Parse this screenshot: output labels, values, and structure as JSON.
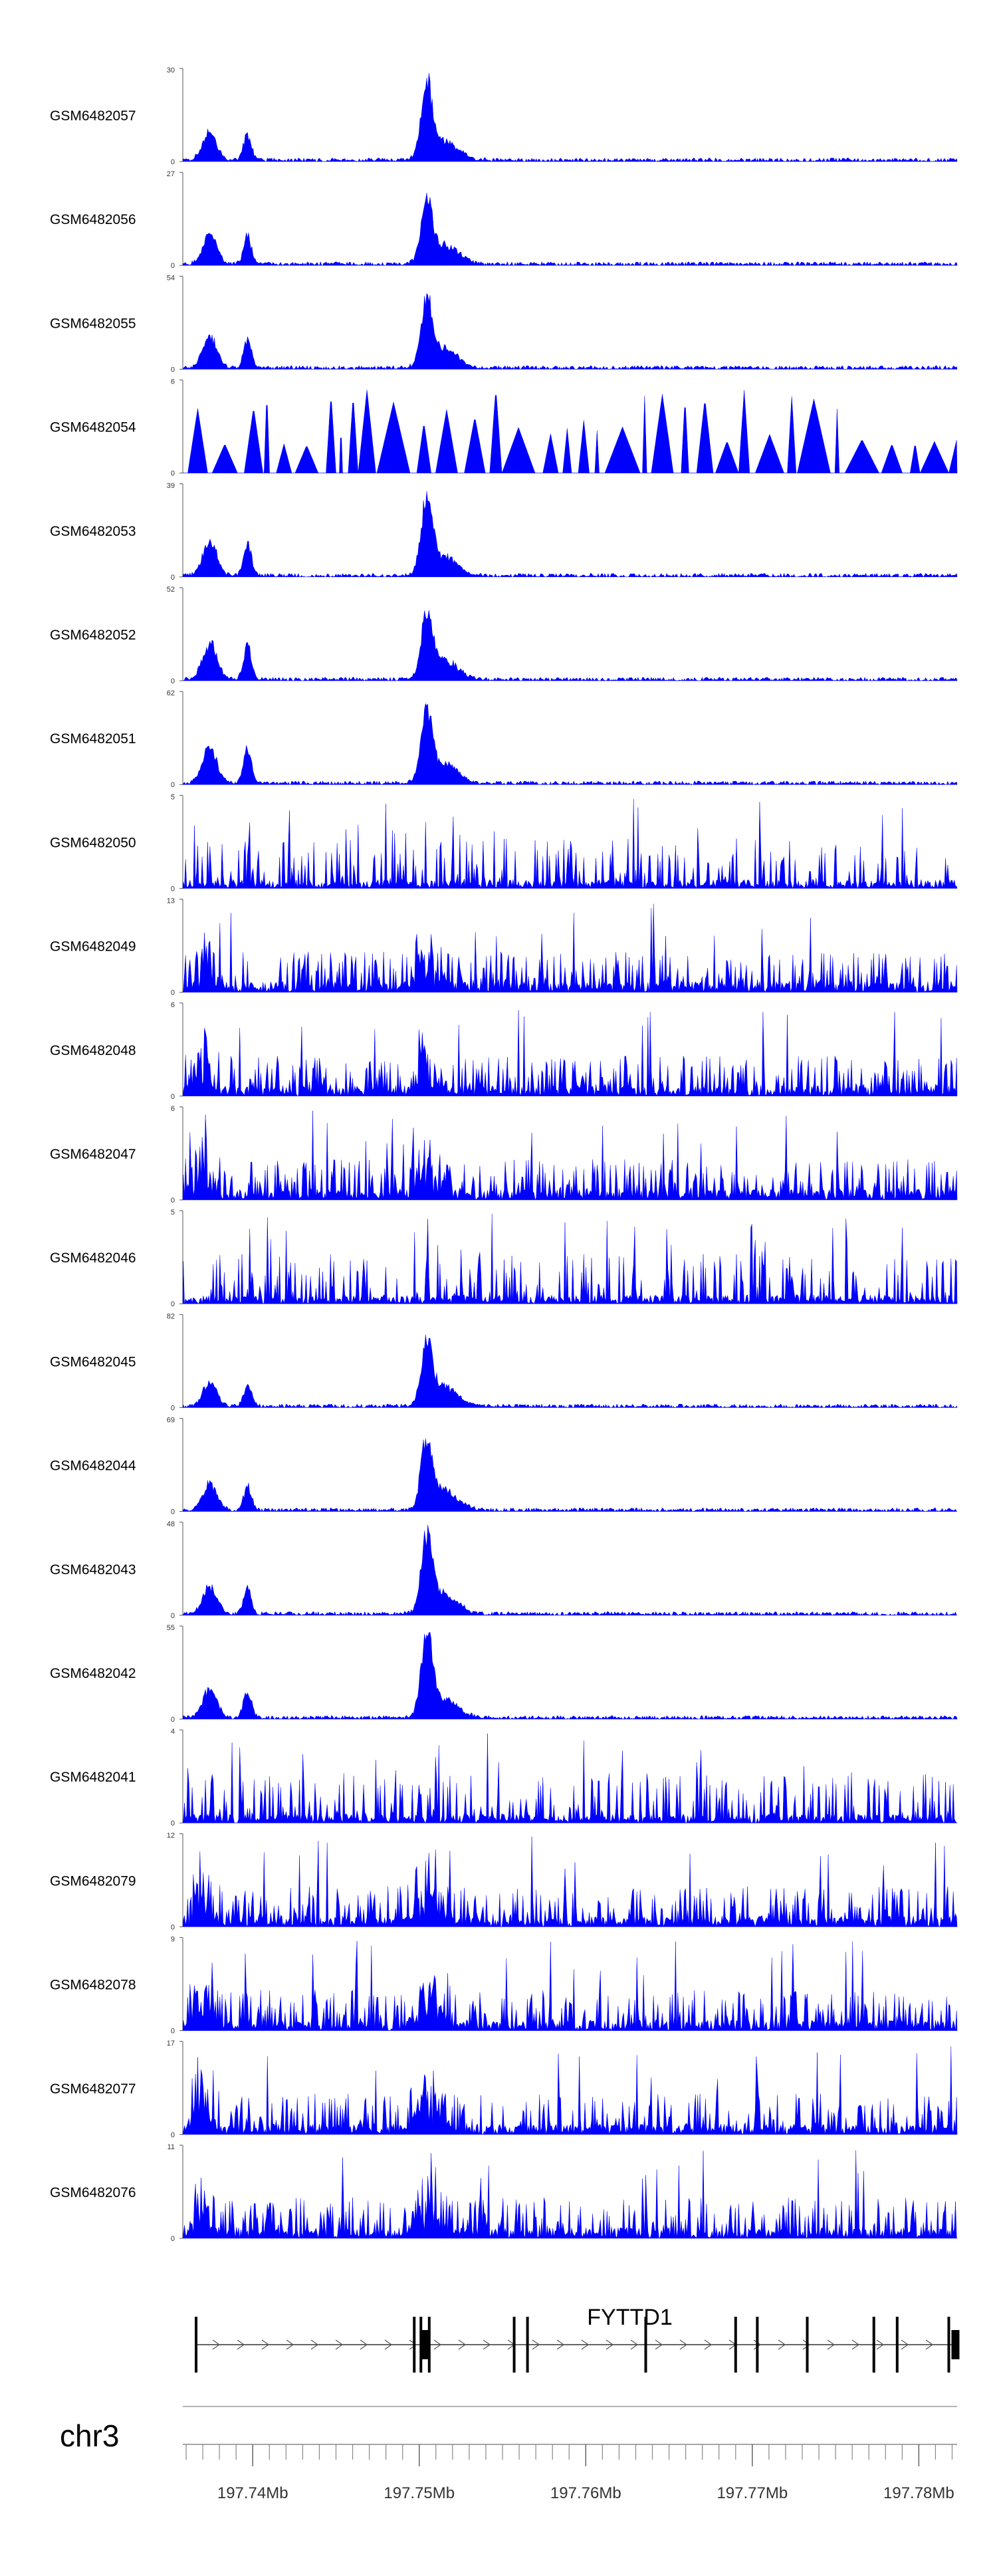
{
  "chart_data": {
    "type": "area",
    "title": "",
    "xlabel": "",
    "ylabel": "",
    "chromosome": "chr3",
    "x_range_mb": [
      197.7358,
      197.7823
    ],
    "x_ticks": [
      "197.74Mb",
      "197.75Mb",
      "197.76Mb",
      "197.77Mb",
      "197.78Mb"
    ],
    "x_tick_values_mb": [
      197.74,
      197.75,
      197.76,
      197.77,
      197.78
    ],
    "series_color": "#0000ff",
    "tracks": [
      {
        "name": "GSM6482057",
        "ymax": 30,
        "profile": "peaks"
      },
      {
        "name": "GSM6482056",
        "ymax": 27,
        "profile": "peaks"
      },
      {
        "name": "GSM6482055",
        "ymax": 54,
        "profile": "peaks"
      },
      {
        "name": "GSM6482054",
        "ymax": 6,
        "profile": "sparse"
      },
      {
        "name": "GSM6482053",
        "ymax": 39,
        "profile": "peaks"
      },
      {
        "name": "GSM6482052",
        "ymax": 52,
        "profile": "peaks"
      },
      {
        "name": "GSM6482051",
        "ymax": 62,
        "profile": "peaks"
      },
      {
        "name": "GSM6482050",
        "ymax": 5,
        "profile": "noise"
      },
      {
        "name": "GSM6482049",
        "ymax": 13,
        "profile": "mixed"
      },
      {
        "name": "GSM6482048",
        "ymax": 6,
        "profile": "mixed"
      },
      {
        "name": "GSM6482047",
        "ymax": 6,
        "profile": "mixed"
      },
      {
        "name": "GSM6482046",
        "ymax": 5,
        "profile": "noise"
      },
      {
        "name": "GSM6482045",
        "ymax": 82,
        "profile": "peaks"
      },
      {
        "name": "GSM6482044",
        "ymax": 69,
        "profile": "peaks"
      },
      {
        "name": "GSM6482043",
        "ymax": 48,
        "profile": "peaks"
      },
      {
        "name": "GSM6482042",
        "ymax": 55,
        "profile": "peaks"
      },
      {
        "name": "GSM6482041",
        "ymax": 4,
        "profile": "noise"
      },
      {
        "name": "GSM6482079",
        "ymax": 12,
        "profile": "mixed"
      },
      {
        "name": "GSM6482078",
        "ymax": 9,
        "profile": "mixed"
      },
      {
        "name": "GSM6482077",
        "ymax": 17,
        "profile": "mixed"
      },
      {
        "name": "GSM6482076",
        "ymax": 11,
        "profile": "mixed"
      }
    ],
    "gene": {
      "name": "FYTTD1",
      "strand": "+",
      "start_mb": 197.7366,
      "end_mb": 197.7823,
      "exons_mb": [
        197.7366,
        197.7497,
        197.7501,
        197.7503,
        197.7506,
        197.7557,
        197.7565,
        197.7636,
        197.769,
        197.7703,
        197.7733,
        197.7773,
        197.7787,
        197.7818,
        197.7822
      ]
    }
  }
}
